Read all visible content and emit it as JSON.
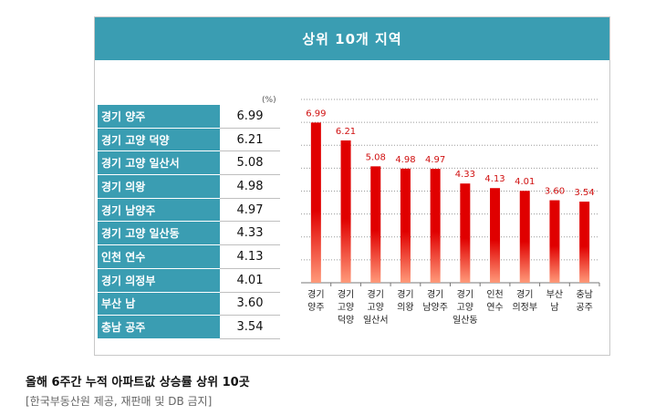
{
  "figure": {
    "title": "상위 10개 지역",
    "unit": "(%)"
  },
  "table": {
    "rows": [
      {
        "region": "경기 양주",
        "value": "6.99"
      },
      {
        "region": "경기 고양 덕양",
        "value": "6.21"
      },
      {
        "region": "경기 고양 일산서",
        "value": "5.08"
      },
      {
        "region": "경기 의왕",
        "value": "4.98"
      },
      {
        "region": "경기 남양주",
        "value": "4.97"
      },
      {
        "region": "경기 고양 일산동",
        "value": "4.33"
      },
      {
        "region": "인천 연수",
        "value": "4.13"
      },
      {
        "region": "경기 의정부",
        "value": "4.01"
      },
      {
        "region": "부산 남",
        "value": "3.60"
      },
      {
        "region": "충남 공주",
        "value": "3.54"
      }
    ]
  },
  "chart_data": {
    "type": "bar",
    "categories": [
      [
        "경기",
        "양주"
      ],
      [
        "경기",
        "고양",
        "덕양"
      ],
      [
        "경기",
        "고양",
        "일산서"
      ],
      [
        "경기",
        "의왕"
      ],
      [
        "경기",
        "남양주"
      ],
      [
        "경기",
        "고양",
        "일산동"
      ],
      [
        "인천",
        "연수"
      ],
      [
        "경기",
        "의정부"
      ],
      [
        "부산",
        "남"
      ],
      [
        "충남",
        "공주"
      ]
    ],
    "values": [
      6.99,
      6.21,
      5.08,
      4.98,
      4.97,
      4.33,
      4.13,
      4.01,
      3.6,
      3.54
    ],
    "data_labels": [
      "6.99",
      "6.21",
      "5.08",
      "4.98",
      "4.97",
      "4.33",
      "4.13",
      "4.01",
      "3.60",
      "3.54"
    ],
    "ylim": [
      0,
      8
    ],
    "grid": true,
    "bar_color_top": "#e00000",
    "bar_color_bottom": "#ff9a7a",
    "label_color": "#d01010"
  },
  "caption": "올해 6주간 누적 아파트값 상승률 상위 10곳",
  "source": "[한국부동산원 제공, 재판매 및 DB 금지]"
}
